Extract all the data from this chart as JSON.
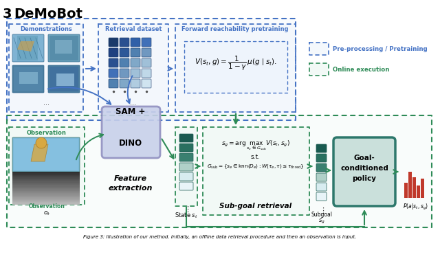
{
  "title_num": "3",
  "title_text": "DeMoBot",
  "bg_color": "#ffffff",
  "blue_dash_color": "#4472c4",
  "blue_fill": "#dce9f8",
  "green_dash_color": "#2e8b57",
  "green_fill": "#d5ece4",
  "purple_edge": "#9090c0",
  "purple_fill": "#c8d0ea",
  "teal_edge": "#1a6b5e",
  "teal_fill": "#c5ddd8",
  "caption": "Figure 3: Illustration of our method. Initially, an offline data retrieval procedure and then an observation is input."
}
